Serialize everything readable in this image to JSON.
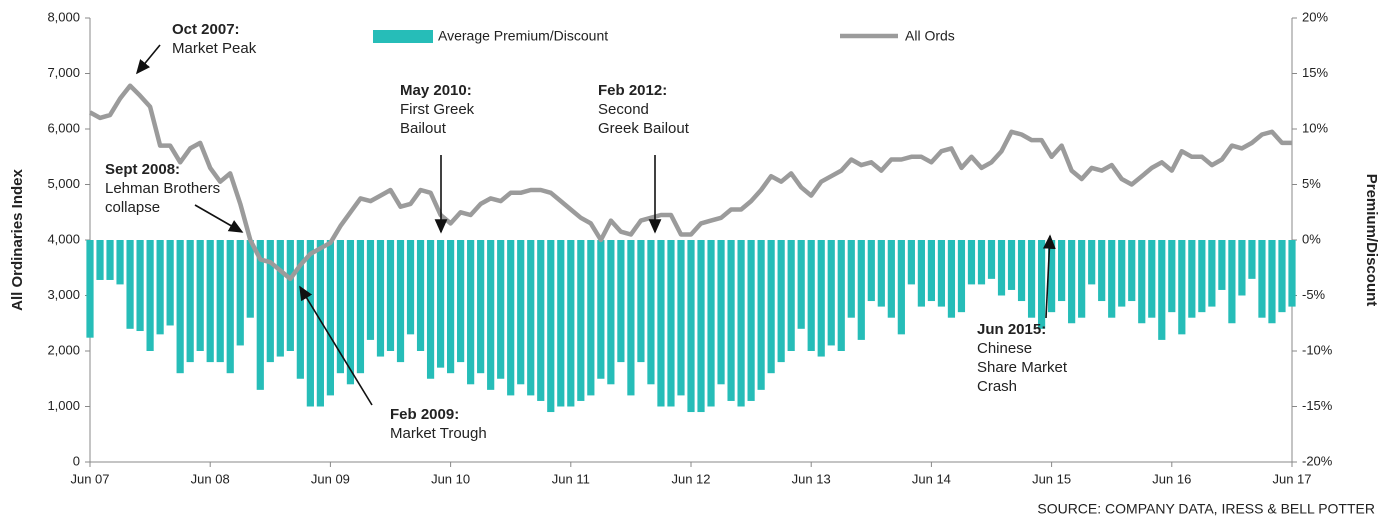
{
  "chart_data": {
    "type": "bar-line",
    "categories": [
      "Jun 07",
      null,
      null,
      null,
      null,
      null,
      null,
      null,
      null,
      null,
      null,
      null,
      "Jun 08",
      null,
      null,
      null,
      null,
      null,
      null,
      null,
      null,
      null,
      null,
      null,
      "Jun 09",
      null,
      null,
      null,
      null,
      null,
      null,
      null,
      null,
      null,
      null,
      null,
      "Jun 10",
      null,
      null,
      null,
      null,
      null,
      null,
      null,
      null,
      null,
      null,
      null,
      "Jun 11",
      null,
      null,
      null,
      null,
      null,
      null,
      null,
      null,
      null,
      null,
      null,
      "Jun 12",
      null,
      null,
      null,
      null,
      null,
      null,
      null,
      null,
      null,
      null,
      null,
      "Jun 13",
      null,
      null,
      null,
      null,
      null,
      null,
      null,
      null,
      null,
      null,
      null,
      "Jun 14",
      null,
      null,
      null,
      null,
      null,
      null,
      null,
      null,
      null,
      null,
      null,
      "Jun 15",
      null,
      null,
      null,
      null,
      null,
      null,
      null,
      null,
      null,
      null,
      null,
      "Jun 16",
      null,
      null,
      null,
      null,
      null,
      null,
      null,
      null,
      null,
      null,
      null,
      "Jun 17"
    ],
    "series": [
      {
        "name": "Average Premium/Discount",
        "color": "#26bdb8",
        "axis": "y2",
        "kind": "bar",
        "values": [
          -8.8,
          -3.6,
          -3.6,
          -4,
          -8,
          -8.2,
          -10,
          -8.5,
          -7.7,
          -12,
          -11,
          -10,
          -11,
          -11,
          -12,
          -9.5,
          -7,
          -13.5,
          -11,
          -10.5,
          -10,
          -12.5,
          -15,
          -15,
          -14,
          -12,
          -13,
          -12,
          -9,
          -10.5,
          -10,
          -11,
          -8.5,
          -10,
          -12.5,
          -11.5,
          -12,
          -11,
          -13,
          -12,
          -13.5,
          -12.5,
          -14,
          -13,
          -14,
          -14.5,
          -15.5,
          -15,
          -15,
          -14.5,
          -14,
          -12.5,
          -13,
          -11,
          -14,
          -11,
          -13,
          -15,
          -15,
          -14,
          -15.5,
          -15.5,
          -15,
          -13,
          -14.5,
          -15,
          -14.5,
          -13.5,
          -12,
          -11,
          -10,
          -8,
          -10,
          -10.5,
          -9.5,
          -10,
          -7,
          -9,
          -5.5,
          -6,
          -7,
          -8.5,
          -4,
          -6,
          -5.5,
          -6,
          -7,
          -6.5,
          -4,
          -4,
          -3.5,
          -5,
          -4.5,
          -5.5,
          -7,
          -8,
          -6.5,
          -5.5,
          -7.5,
          -7,
          -4,
          -5.5,
          -7,
          -6,
          -5.5,
          -7.5,
          -7,
          -9,
          -6.5,
          -8.5,
          -7,
          -6.5,
          -6,
          -4.5,
          -7.5,
          -5,
          -3.5,
          -7,
          -7.5,
          -6.5,
          -6
        ]
      },
      {
        "name": "All Ords",
        "color": "#9b9b9b",
        "axis": "y",
        "kind": "line",
        "values": [
          6300,
          6200,
          6250,
          6550,
          6780,
          6600,
          6400,
          5700,
          5700,
          5400,
          5650,
          5750,
          5300,
          5050,
          5200,
          4650,
          4000,
          3650,
          3600,
          3450,
          3300,
          3550,
          3750,
          3850,
          3950,
          4250,
          4500,
          4750,
          4700,
          4800,
          4900,
          4600,
          4650,
          4900,
          4850,
          4450,
          4300,
          4500,
          4450,
          4650,
          4750,
          4700,
          4850,
          4850,
          4900,
          4900,
          4850,
          4700,
          4550,
          4400,
          4300,
          4000,
          4350,
          4150,
          4100,
          4350,
          4400,
          4450,
          4450,
          4100,
          4100,
          4300,
          4350,
          4400,
          4550,
          4550,
          4700,
          4900,
          5150,
          5050,
          5200,
          4950,
          4800,
          5050,
          5150,
          5250,
          5450,
          5350,
          5400,
          5250,
          5450,
          5450,
          5500,
          5500,
          5400,
          5600,
          5650,
          5300,
          5500,
          5300,
          5400,
          5600,
          5950,
          5900,
          5800,
          5800,
          5500,
          5700,
          5250,
          5100,
          5300,
          5250,
          5350,
          5100,
          5000,
          5150,
          5300,
          5400,
          5250,
          5600,
          5500,
          5500,
          5350,
          5450,
          5700,
          5650,
          5750,
          5900,
          5950,
          5750,
          5750
        ]
      }
    ],
    "y_label": "All Ordinaries Index",
    "y2_label": "Premium/Discount",
    "ylim": [
      0,
      8000
    ],
    "yticks": [
      0,
      {
        "value": 1000,
        "label": "1,000"
      },
      {
        "value": 2000,
        "label": "2,000"
      },
      {
        "value": 3000,
        "label": "3,000"
      },
      {
        "value": 4000,
        "label": "4,000"
      },
      {
        "value": 5000,
        "label": "5,000"
      },
      {
        "value": 6000,
        "label": "6,000"
      },
      {
        "value": 7000,
        "label": "7,000"
      },
      {
        "value": 8000,
        "label": "8,000"
      }
    ],
    "y2lim": [
      -20,
      20
    ],
    "y2ticks": [
      {
        "value": -20,
        "label": "-20%"
      },
      {
        "value": -15,
        "label": "-15%"
      },
      {
        "value": -10,
        "label": "-10%"
      },
      {
        "value": -5,
        "label": "-5%"
      },
      {
        "value": 0,
        "label": "0%"
      },
      {
        "value": 5,
        "label": "5%"
      },
      {
        "value": 10,
        "label": "10%"
      },
      {
        "value": 15,
        "label": "15%"
      },
      {
        "value": 20,
        "label": "20%"
      }
    ],
    "annotations": [
      {
        "title": "Oct 2007:",
        "lines": [
          "Market Peak"
        ]
      },
      {
        "title": "Sept 2008:",
        "lines": [
          "Lehman Brothers",
          "collapse"
        ]
      },
      {
        "title": "Feb 2009:",
        "lines": [
          "Market Trough"
        ]
      },
      {
        "title": "May 2010:",
        "lines": [
          "First Greek",
          "Bailout"
        ]
      },
      {
        "title": "Feb 2012:",
        "lines": [
          "Second",
          "Greek Bailout"
        ]
      },
      {
        "title": "Jun 2015:",
        "lines": [
          "Chinese",
          "Share Market",
          "Crash"
        ]
      }
    ],
    "source": "SOURCE: COMPANY DATA, IRESS & BELL POTTER"
  }
}
